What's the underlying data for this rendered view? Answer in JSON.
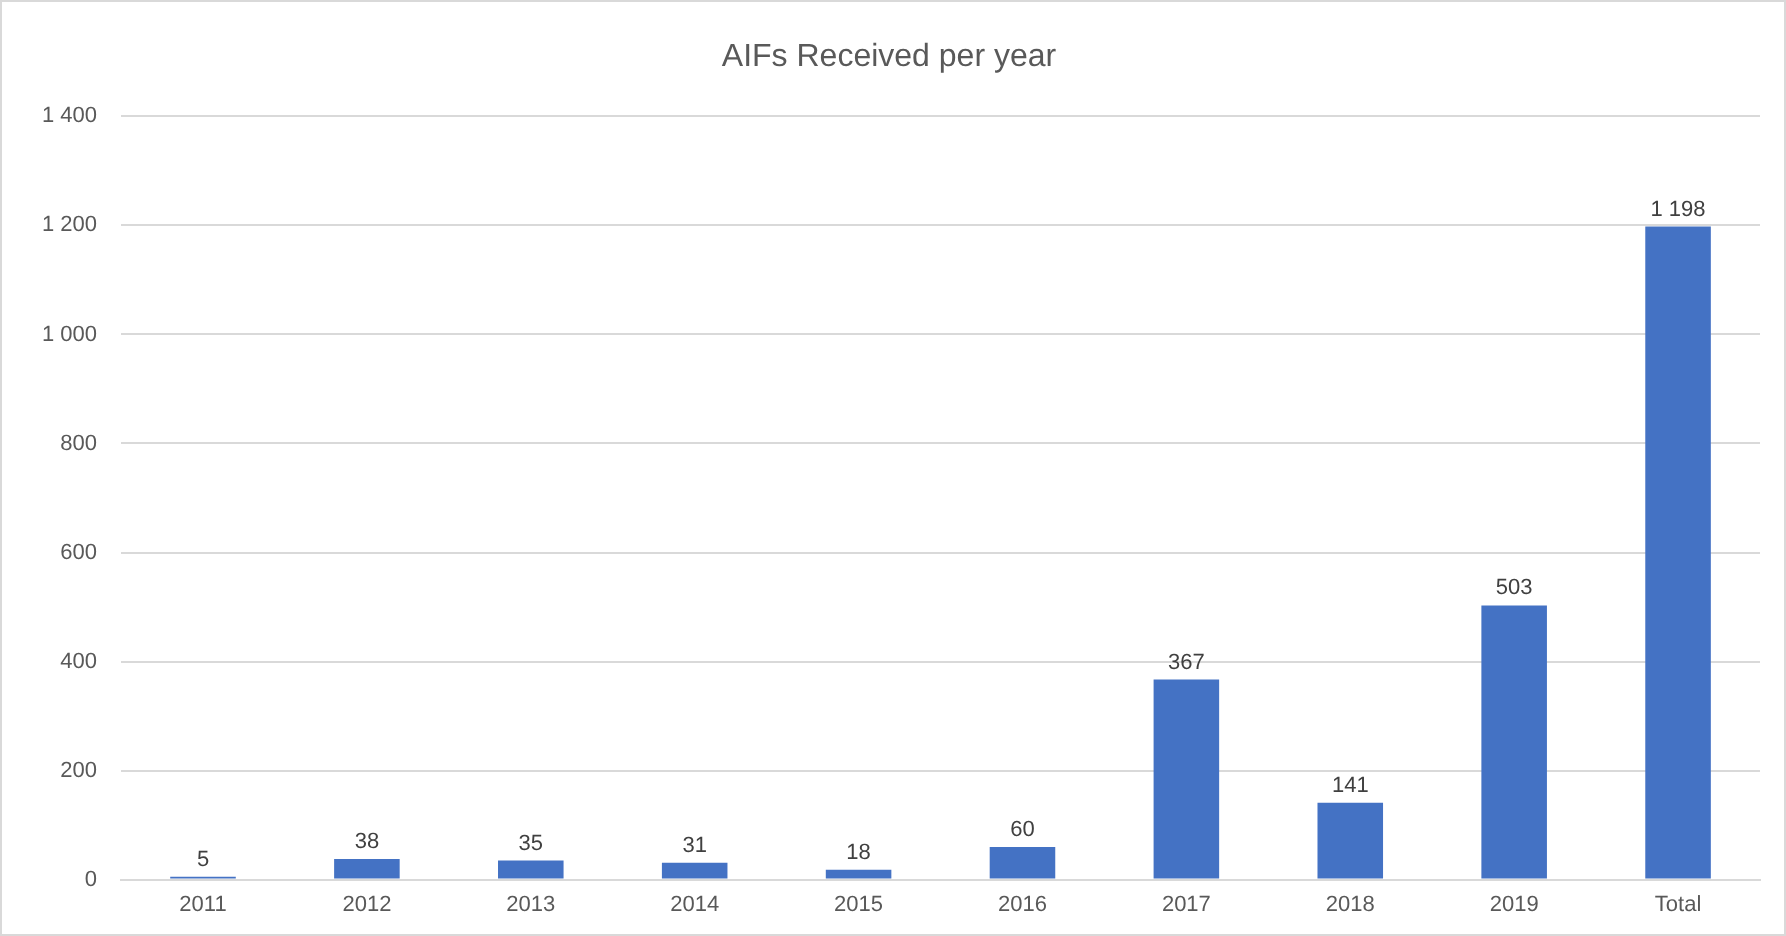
{
  "chart_data": {
    "type": "bar",
    "title": "AIFs Received per year",
    "categories": [
      "2011",
      "2012",
      "2013",
      "2014",
      "2015",
      "2016",
      "2017",
      "2018",
      "2019",
      "Total"
    ],
    "values": [
      5,
      38,
      35,
      31,
      18,
      60,
      367,
      141,
      503,
      1198
    ],
    "value_labels": [
      "5",
      "38",
      "35",
      "31",
      "18",
      "60",
      "367",
      "141",
      "503",
      "1 198"
    ],
    "color": "#4472c4",
    "ylim": [
      0,
      1400
    ],
    "yticks": [
      0,
      200,
      400,
      600,
      800,
      {
        "value": 1000,
        "label": "1 000"
      },
      {
        "value": 1200,
        "label": "1 200"
      },
      {
        "value": 1400,
        "label": "1 400"
      }
    ],
    "grid": "y",
    "legend": false
  }
}
